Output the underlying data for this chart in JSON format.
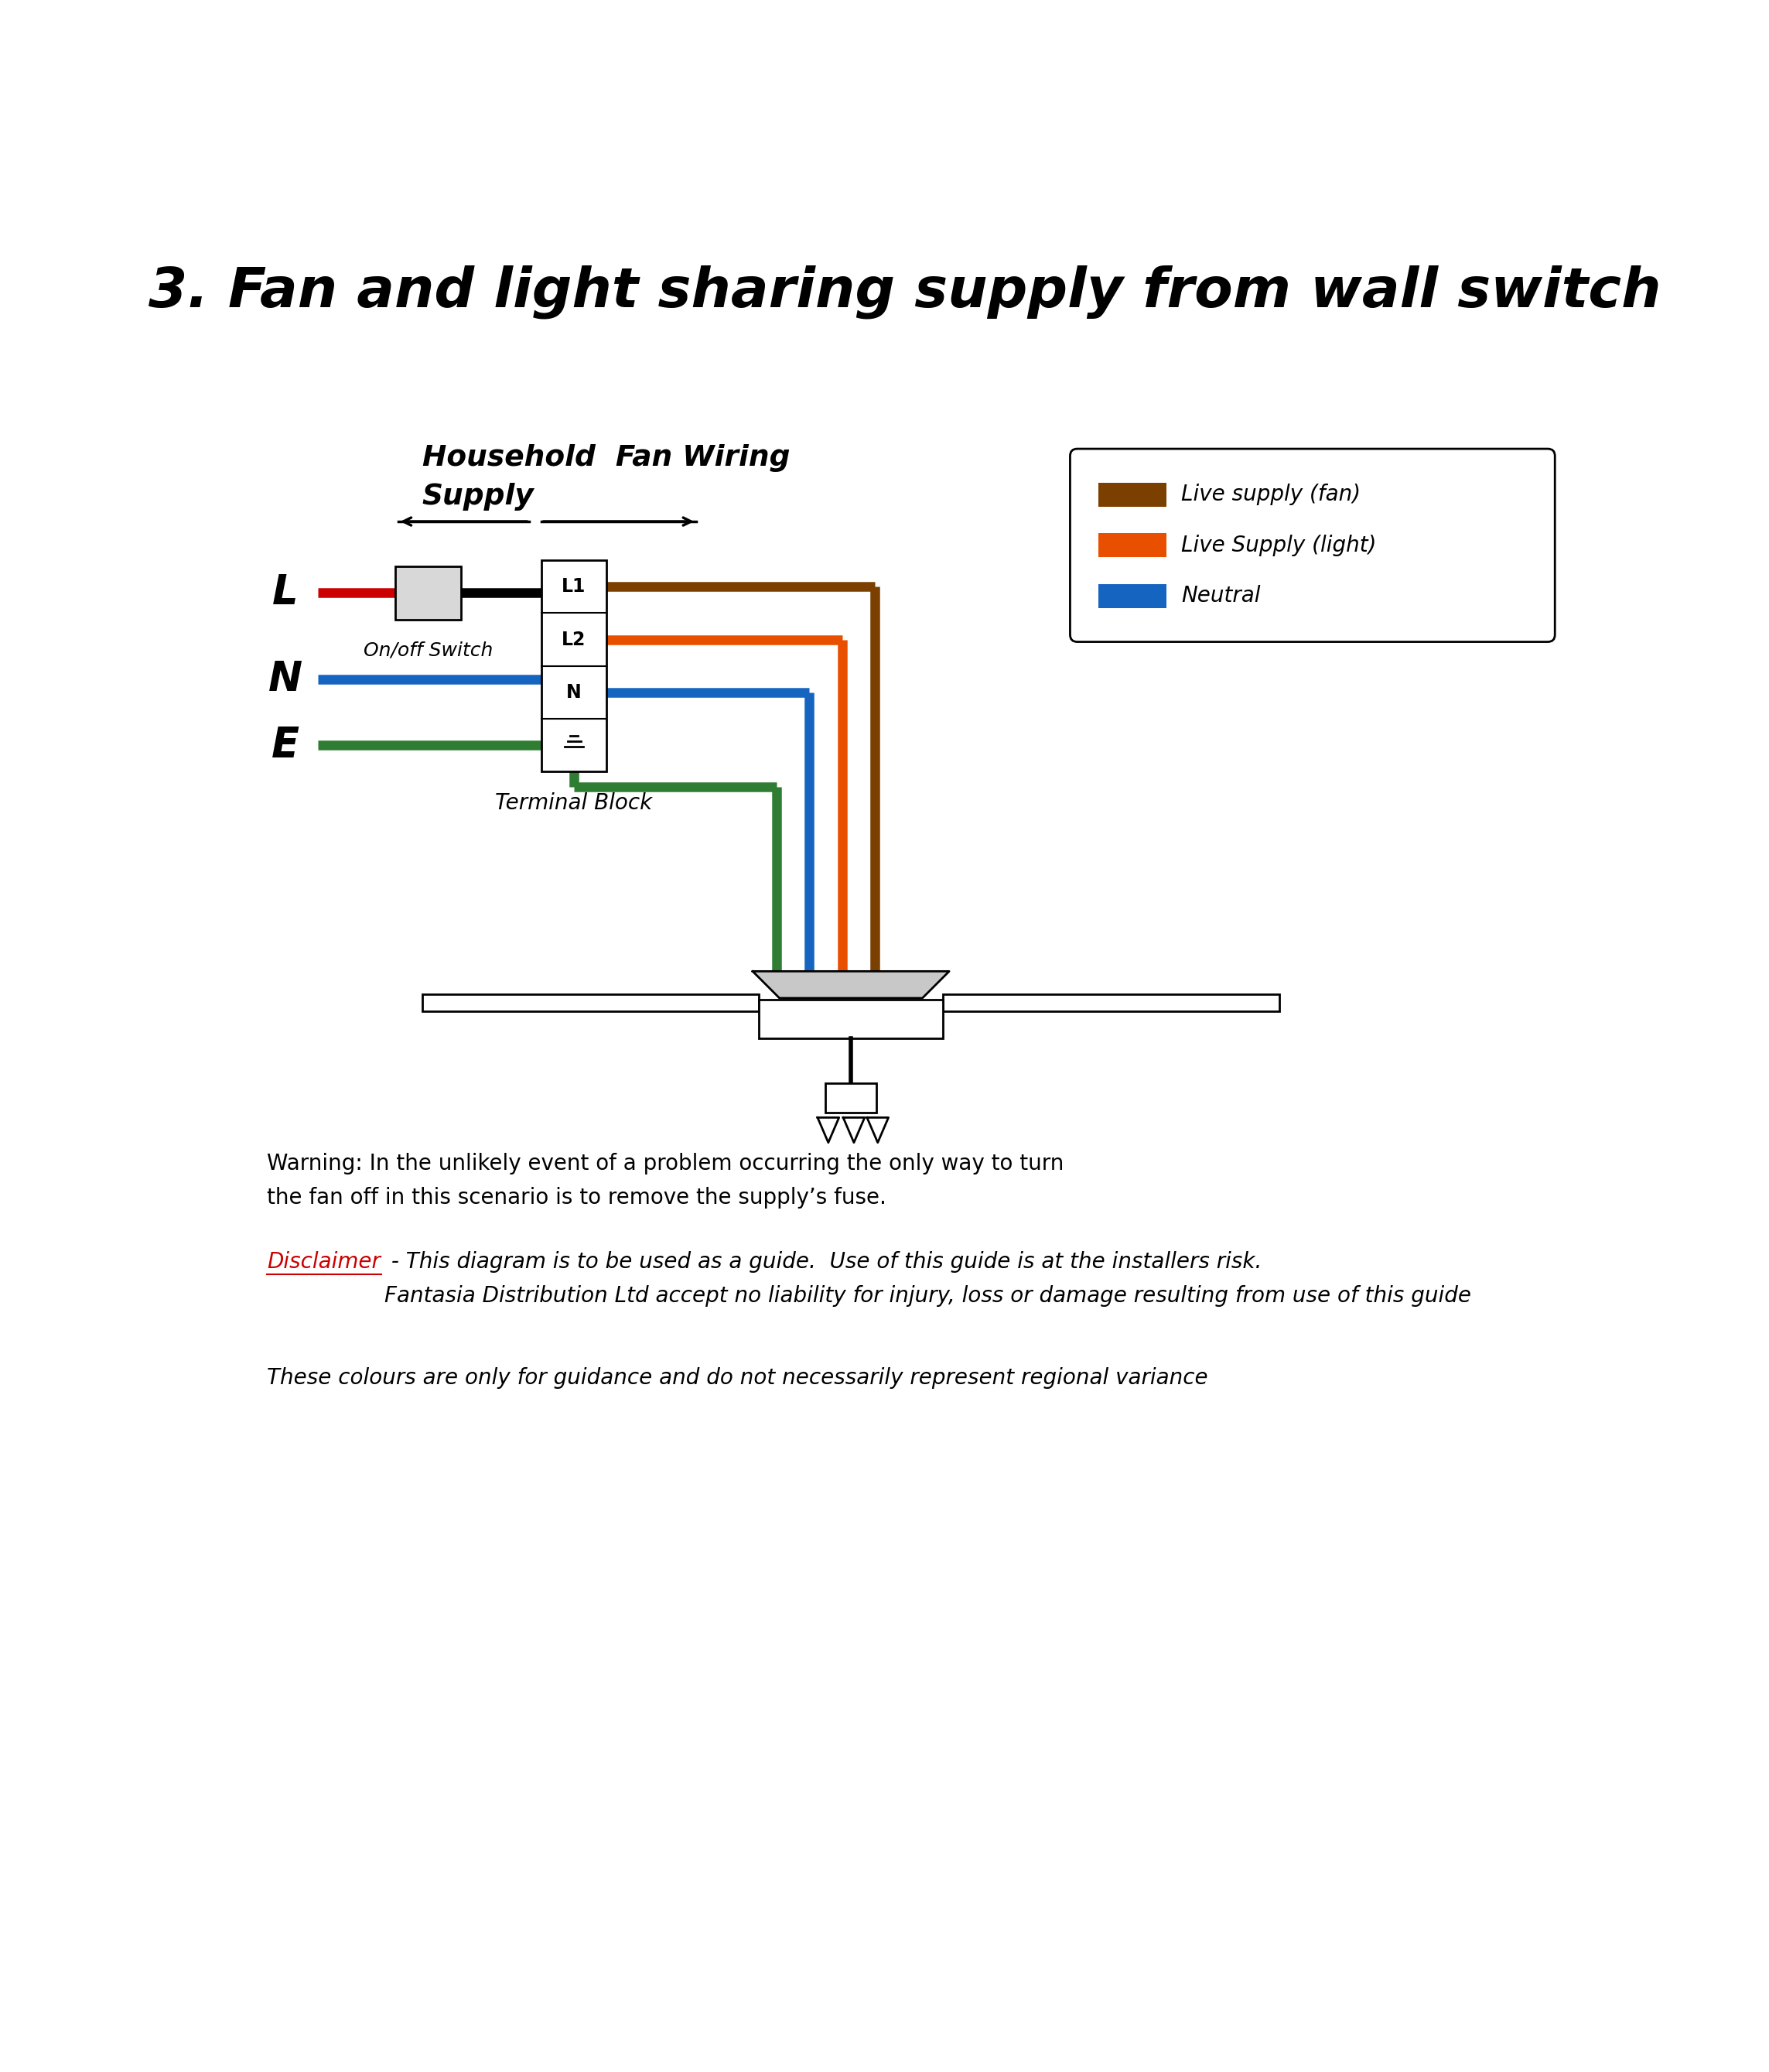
{
  "title": "3. Fan and light sharing supply from wall switch",
  "title_fontsize": 52,
  "bg_color": "#ffffff",
  "wire_colors": {
    "live_fan": "#7B3F00",
    "live_light": "#E85000",
    "neutral": "#1565C0",
    "earth": "#2E7D32",
    "black": "#000000",
    "red": "#cc0000"
  },
  "legend": {
    "live_fan_label": "Live supply (fan)",
    "live_light_label": "Live Supply (light)",
    "neutral_label": "Neutral"
  },
  "labels": {
    "on_off_switch": "On/off Switch",
    "terminal_block": "Terminal Block"
  },
  "warning_text": "Warning: In the unlikely event of a problem occurring the only way to turn\nthe fan off in this scenario is to remove the supply’s fuse.",
  "disclaimer_rest": " - This diagram is to be used as a guide.  Use of this guide is at the installers risk.\nFantasia Distribution Ltd accept no liability for injury, loss or damage resulting from use of this guide",
  "colours_text": "These colours are only for guidance and do not necessarily represent regional variance",
  "disclaimer_word": "Disclaimer"
}
